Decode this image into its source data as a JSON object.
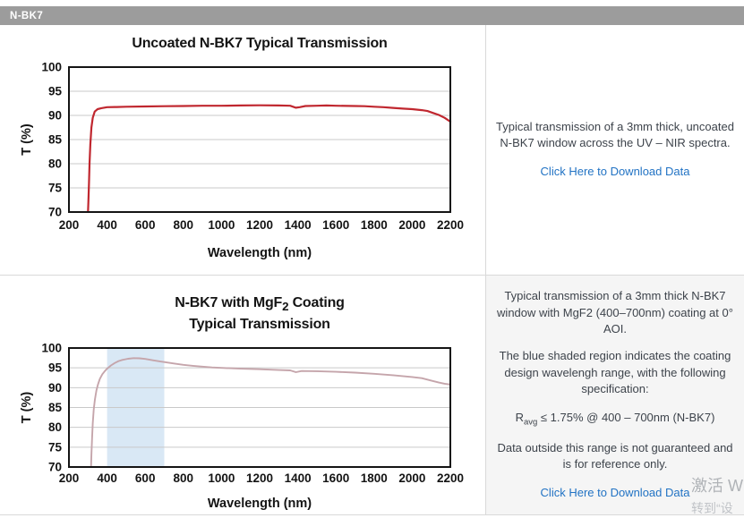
{
  "tab": {
    "label": "N-BK7"
  },
  "sections": [
    {
      "text": "Typical transmission of a 3mm thick, uncoated N-BK7 window across the UV – NIR spectra.",
      "link": "Click Here to Download Data"
    },
    {
      "intro": "Typical transmission of a 3mm thick N-BK7 window with MgF2 (400–700nm) coating at 0° AOI.",
      "shaded_note": "The blue shaded region indicates the coating design wavelengh range, with the following specification:",
      "spec": {
        "pre": "R",
        "sub": "avg",
        "post": " ≤ 1.75% @ 400 – 700nm (N-BK7)"
      },
      "outside_note": "Data outside this range is not guaranteed and is for reference only.",
      "link": "Click Here to Download Data"
    }
  ],
  "chart_data": [
    {
      "type": "line",
      "title": "Uncoated N-BK7 Typical Transmission",
      "xlabel": "Wavelength (nm)",
      "ylabel": "T (%)",
      "xlim": [
        200,
        2200
      ],
      "ylim": [
        70,
        100
      ],
      "xticks": [
        200,
        400,
        600,
        800,
        1000,
        1200,
        1400,
        1600,
        1800,
        2000,
        2200
      ],
      "yticks": [
        70,
        75,
        80,
        85,
        90,
        95,
        100
      ],
      "grid": "horizontal",
      "grid_color": "#c9c9c9",
      "border_color": "#141414",
      "series": [
        {
          "name": "Uncoated N-BK7 transmission",
          "color": "#c0272f",
          "width": 2.2,
          "x": [
            300,
            302,
            305,
            308,
            312,
            318,
            325,
            335,
            350,
            370,
            400,
            450,
            500,
            600,
            700,
            800,
            900,
            1000,
            1100,
            1200,
            1300,
            1360,
            1390,
            1410,
            1440,
            1500,
            1550,
            1600,
            1700,
            1750,
            1800,
            1850,
            1900,
            1950,
            2000,
            2050,
            2080,
            2110,
            2140,
            2170,
            2200
          ],
          "y": [
            70,
            72,
            76,
            80,
            84,
            87.5,
            89.5,
            90.8,
            91.3,
            91.5,
            91.7,
            91.75,
            91.8,
            91.85,
            91.9,
            91.95,
            92,
            92,
            92.05,
            92.1,
            92.05,
            92,
            91.6,
            91.7,
            91.95,
            92,
            92.05,
            92,
            91.95,
            91.9,
            91.8,
            91.7,
            91.55,
            91.4,
            91.3,
            91.1,
            90.9,
            90.5,
            90.1,
            89.5,
            88.7
          ]
        }
      ]
    },
    {
      "type": "line",
      "title_parts": {
        "pre": "N-BK7 with MgF",
        "sub": "2",
        "post": " Coating"
      },
      "title_line2": "Typical Transmission",
      "xlabel": "Wavelength (nm)",
      "ylabel": "T (%)",
      "xlim": [
        200,
        2200
      ],
      "ylim": [
        70,
        100
      ],
      "xticks": [
        200,
        400,
        600,
        800,
        1000,
        1200,
        1400,
        1600,
        1800,
        2000,
        2200
      ],
      "yticks": [
        70,
        75,
        80,
        85,
        90,
        95,
        100
      ],
      "grid": "horizontal",
      "grid_color": "#c9c9c9",
      "border_color": "#141414",
      "shaded_region": [
        400,
        700
      ],
      "shaded_region_color": "#d9e8f5",
      "series": [
        {
          "name": "N-BK7 with MgF2 coating transmission",
          "color": "#c5a5ab",
          "width": 1.9,
          "x": [
            316,
            318,
            321,
            325,
            330,
            336,
            344,
            352,
            362,
            375,
            390,
            400,
            420,
            440,
            460,
            480,
            510,
            540,
            570,
            600,
            640,
            680,
            700,
            750,
            800,
            850,
            900,
            950,
            1000,
            1100,
            1200,
            1300,
            1360,
            1390,
            1420,
            1500,
            1600,
            1700,
            1800,
            1900,
            2000,
            2050,
            2100,
            2140,
            2170,
            2200
          ],
          "y": [
            70,
            73,
            77,
            81,
            84.5,
            87,
            89.3,
            90.8,
            92.2,
            93.4,
            94.3,
            94.8,
            95.6,
            96.2,
            96.7,
            97,
            97.3,
            97.45,
            97.4,
            97.25,
            96.9,
            96.6,
            96.45,
            96.1,
            95.75,
            95.5,
            95.3,
            95.1,
            95,
            94.8,
            94.65,
            94.45,
            94.35,
            93.9,
            94.2,
            94.15,
            94,
            93.8,
            93.5,
            93.15,
            92.7,
            92.4,
            91.8,
            91.3,
            91,
            90.8
          ]
        }
      ]
    }
  ],
  "watermark": {
    "line1": "激活 W",
    "line2": "转到“设"
  }
}
